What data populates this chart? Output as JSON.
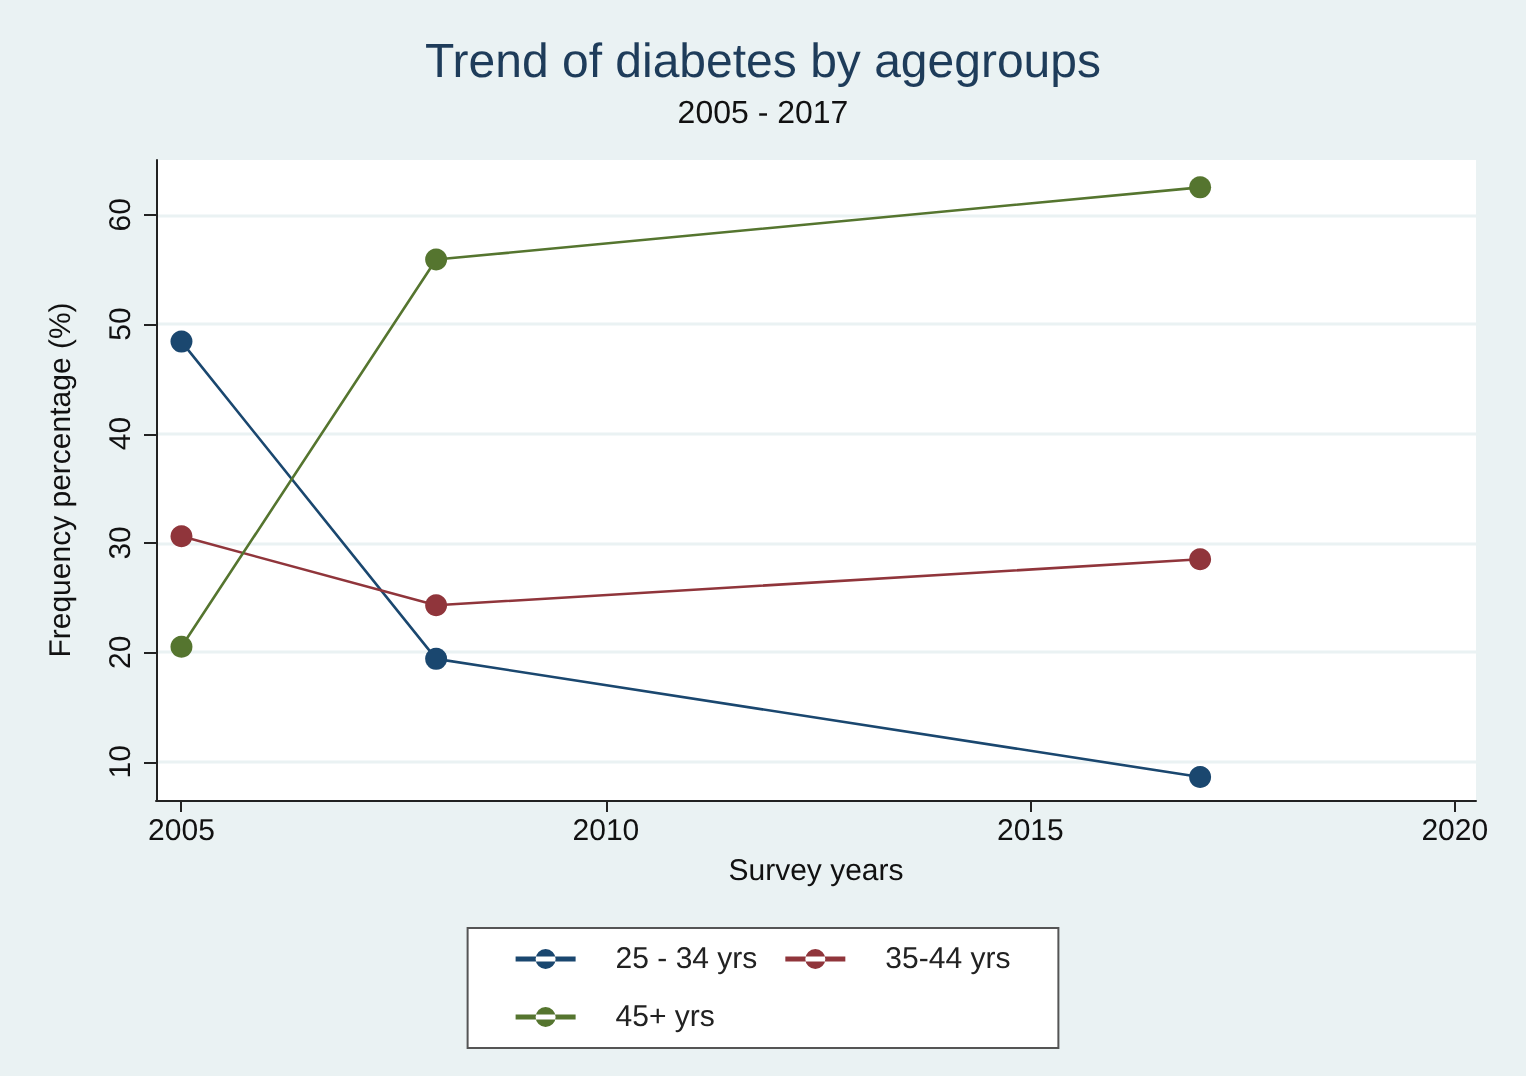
{
  "chart_data": {
    "type": "line",
    "title": "Trend of diabetes by agegroups",
    "subtitle": "2005 - 2017",
    "xlabel": "Survey years",
    "ylabel": "Frequency percentage (%)",
    "x": [
      2005,
      2008,
      2017
    ],
    "series": [
      {
        "name": "25 - 34 yrs",
        "color": "#1a476f",
        "values": [
          48.4,
          19.4,
          8.6
        ]
      },
      {
        "name": "35-44 yrs",
        "color": "#90353b",
        "values": [
          30.6,
          24.3,
          28.5
        ]
      },
      {
        "name": "45+ yrs",
        "color": "#55752f",
        "values": [
          20.5,
          55.9,
          62.5
        ]
      }
    ],
    "xlim": [
      2004.7,
      2020.25
    ],
    "xticks": [
      2005,
      2010,
      2015,
      2020
    ],
    "ylim": [
      6.5,
      65
    ],
    "yticks": [
      10,
      20,
      30,
      40,
      50,
      60
    ],
    "grid": "y",
    "legend": "bottom",
    "marker": "circle",
    "line_style": "solid"
  }
}
